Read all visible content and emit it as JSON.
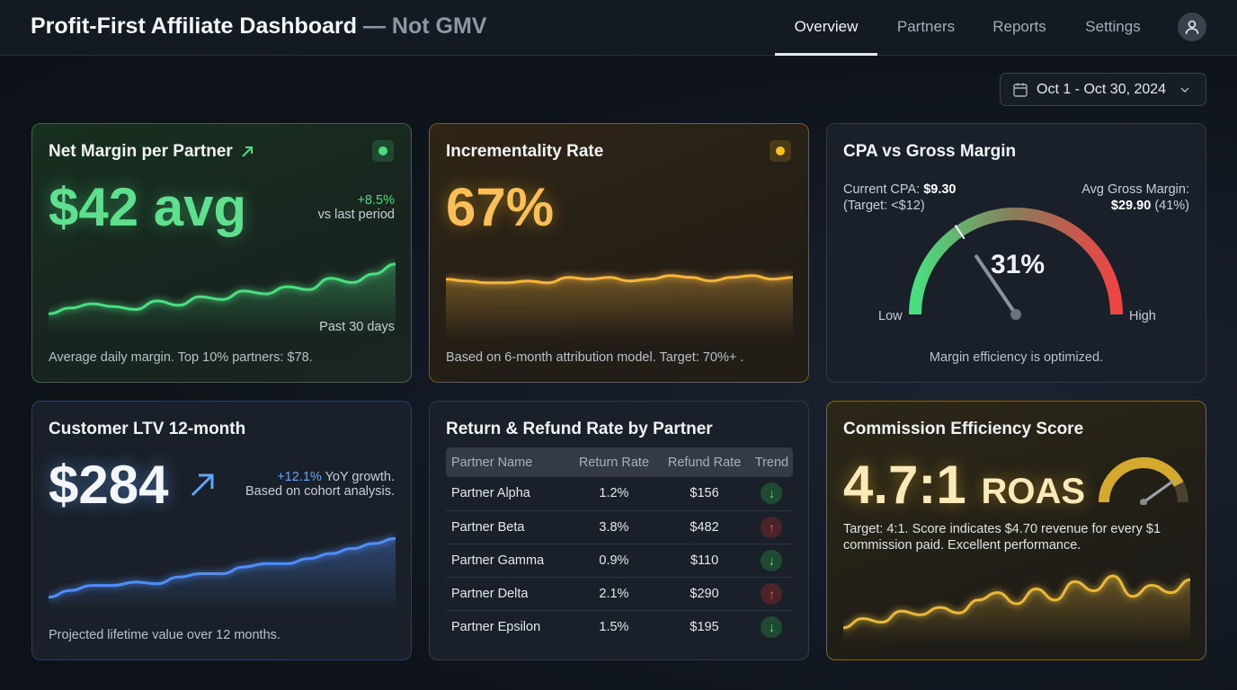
{
  "header": {
    "title": "Profit-First Affiliate Dashboard",
    "title_suffix": "— Not GMV",
    "nav": [
      {
        "label": "Overview",
        "active": true
      },
      {
        "label": "Partners"
      },
      {
        "label": "Reports"
      },
      {
        "label": "Settings"
      }
    ]
  },
  "date_range": "Oct 1 - Oct 30, 2024",
  "net_margin": {
    "title": "Net Margin per Partner",
    "value": "$42 avg",
    "change": "+8.5%",
    "change_label": "vs last period",
    "period": "Past 30 days",
    "footer": "Average daily margin. Top 10% partners: $78.",
    "status_color": "#4ade80",
    "spark": [
      10,
      14,
      17,
      15,
      13,
      19,
      16,
      22,
      20,
      26,
      24,
      29,
      27,
      35,
      32,
      38,
      45
    ]
  },
  "incrementality": {
    "title": "Incrementality Rate",
    "value": "67%",
    "footer": "Based on 6-month attribution model. Target: 70%+ .",
    "status_color": "#fbbf24",
    "spark": [
      30,
      29,
      28,
      28,
      29,
      28,
      31,
      30,
      31,
      29,
      30,
      32,
      31,
      29,
      31,
      32,
      30,
      31
    ]
  },
  "cpa": {
    "title": "CPA vs Gross Margin",
    "cpa_label": "Current CPA:",
    "cpa_value": "$9.30",
    "cpa_target": "(Target: <$12)",
    "gm_label": "Avg Gross Margin:",
    "gm_value": "$29.90",
    "gm_pct": "(41%)",
    "gauge_value": "31%",
    "gauge_fraction": 0.31,
    "low": "Low",
    "high": "High",
    "footer": "Margin efficiency is optimized."
  },
  "ltv": {
    "title": "Customer LTV 12-month",
    "value": "$284",
    "change": "+12.1%",
    "change_label": "YoY growth.",
    "note": "Based on cohort analysis.",
    "footer": "Projected lifetime value over 12 months.",
    "spark": [
      5,
      9,
      12,
      12,
      14,
      13,
      17,
      19,
      19,
      23,
      25,
      25,
      28,
      31,
      34,
      37,
      40
    ]
  },
  "returns": {
    "title": "Return & Refund Rate by Partner",
    "columns": [
      "Partner Name",
      "Return Rate",
      "Refund Rate",
      "Trend"
    ],
    "rows": [
      {
        "name": "Partner Alpha",
        "return": "1.2%",
        "refund": "$156",
        "trend": "down"
      },
      {
        "name": "Partner Beta",
        "return": "3.8%",
        "refund": "$482",
        "trend": "up"
      },
      {
        "name": "Partner Gamma",
        "return": "0.9%",
        "refund": "$110",
        "trend": "down"
      },
      {
        "name": "Partner Delta",
        "return": "2.1%",
        "refund": "$290",
        "trend": "up"
      },
      {
        "name": "Partner Epsilon",
        "return": "1.5%",
        "refund": "$195",
        "trend": "down"
      }
    ]
  },
  "commission": {
    "title": "Commission Efficiency Score",
    "value": "4.7:1",
    "unit": "ROAS",
    "footer": "Target: 4:1. Score indicates $4.70 revenue for every $1 commission paid. Excellent performance.",
    "gauge_fraction": 0.85,
    "spark": [
      5,
      10,
      8,
      14,
      12,
      16,
      13,
      20,
      24,
      18,
      26,
      20,
      30,
      25,
      33,
      22,
      28,
      24,
      31
    ]
  }
}
